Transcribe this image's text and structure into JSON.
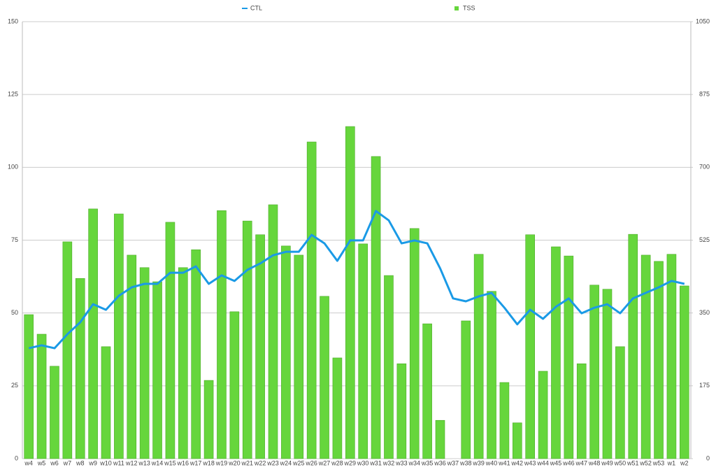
{
  "chart_data": {
    "type": "bar",
    "categories": [
      "w4",
      "w5",
      "w6",
      "w7",
      "w8",
      "w9",
      "w10",
      "w11",
      "w12",
      "w13",
      "w14",
      "w15",
      "w16",
      "w17",
      "w18",
      "w19",
      "w20",
      "w21",
      "w22",
      "w23",
      "w24",
      "w25",
      "w26",
      "w27",
      "w28",
      "w29",
      "w30",
      "w31",
      "w32",
      "w33",
      "w34",
      "w35",
      "w36",
      "w37",
      "w38",
      "w39",
      "w40",
      "w41",
      "w42",
      "w43",
      "w44",
      "w45",
      "w46",
      "w47",
      "w48",
      "w49",
      "w50",
      "w51",
      "w52",
      "w53",
      "w1",
      "w2"
    ],
    "series": [
      {
        "name": "CTL",
        "type": "line",
        "color": "#1a9ae6",
        "axis": "y",
        "values": [
          37.9,
          38.9,
          37.9,
          42.7,
          46.8,
          53.0,
          51.1,
          55.9,
          58.8,
          60.0,
          60.0,
          63.8,
          63.8,
          66.0,
          60.0,
          62.9,
          61.0,
          64.8,
          67.0,
          69.8,
          71.0,
          71.0,
          76.8,
          73.9,
          67.9,
          74.9,
          74.9,
          85.0,
          81.8,
          73.9,
          74.9,
          73.9,
          65.3,
          55.0,
          54.0,
          55.7,
          56.9,
          51.8,
          46.1,
          51.1,
          48.0,
          52.1,
          55.0,
          49.9,
          51.8,
          53.0,
          49.9,
          55.0,
          56.9,
          58.8,
          61.0,
          60.0
        ]
      },
      {
        "name": "TSS",
        "type": "bar",
        "color": "#66d63c",
        "axis": "y2",
        "values": [
          346,
          299,
          222,
          521,
          433,
          600,
          269,
          588,
          489,
          459,
          425,
          568,
          459,
          502,
          188,
          596,
          353,
          571,
          538,
          610,
          511,
          489,
          761,
          390,
          242,
          798,
          516,
          726,
          440,
          228,
          553,
          324,
          92,
          0,
          331,
          491,
          402,
          183,
          86,
          538,
          210,
          509,
          487,
          228,
          417,
          407,
          269,
          539,
          489,
          474,
          491,
          415
        ]
      }
    ],
    "ylim": [
      0,
      150
    ],
    "yticks": [
      0,
      25,
      50,
      75,
      100,
      125,
      150
    ],
    "y2lim": [
      0,
      1050
    ],
    "y2ticks": [
      0,
      175,
      350,
      525,
      700,
      875,
      1050
    ],
    "grid": true,
    "legend": "top"
  }
}
